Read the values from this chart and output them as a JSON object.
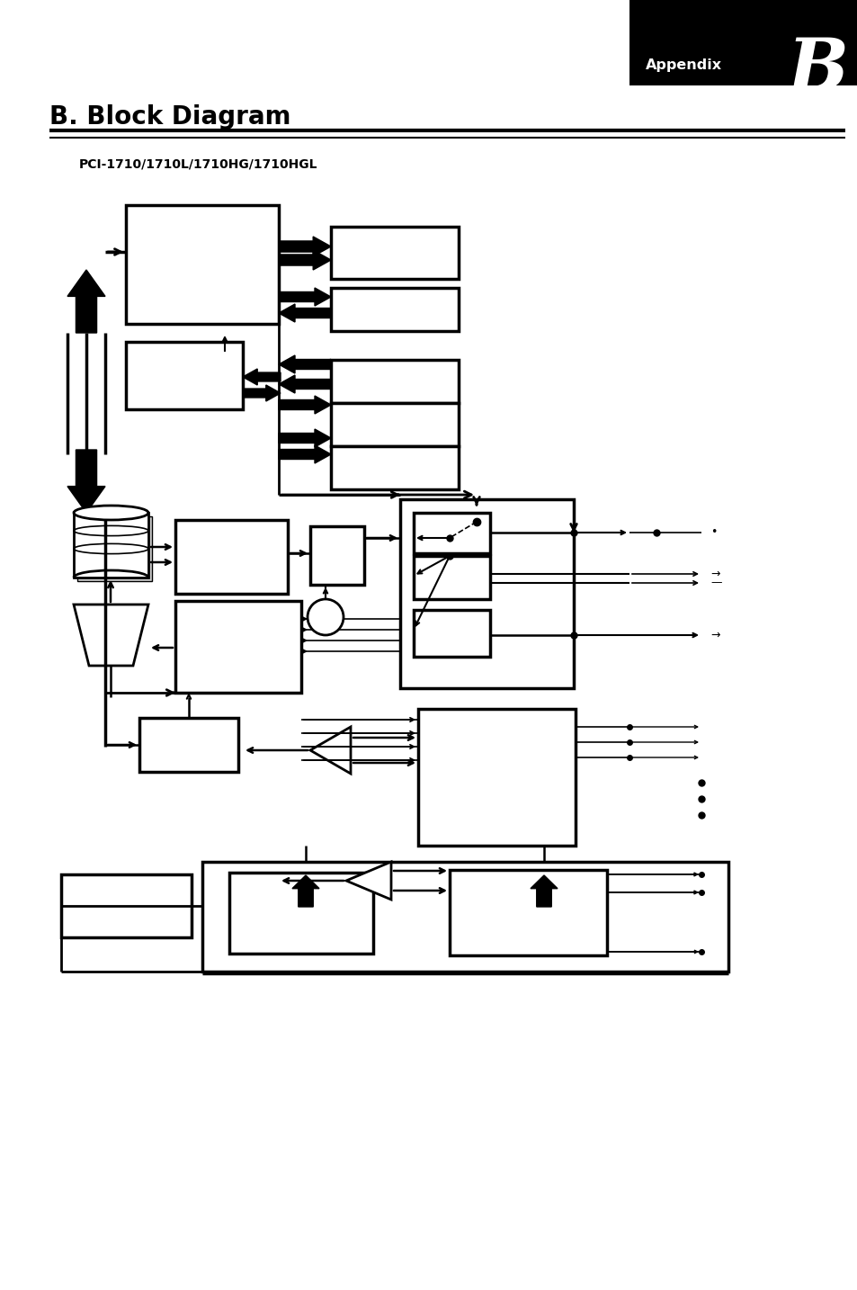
{
  "title": "B. Block Diagram",
  "subtitle": "PCI-1710/1710L/1710HG/1710HGL",
  "appendix_label": "Appendix",
  "appendix_letter": "B",
  "bg_color": "#ffffff"
}
